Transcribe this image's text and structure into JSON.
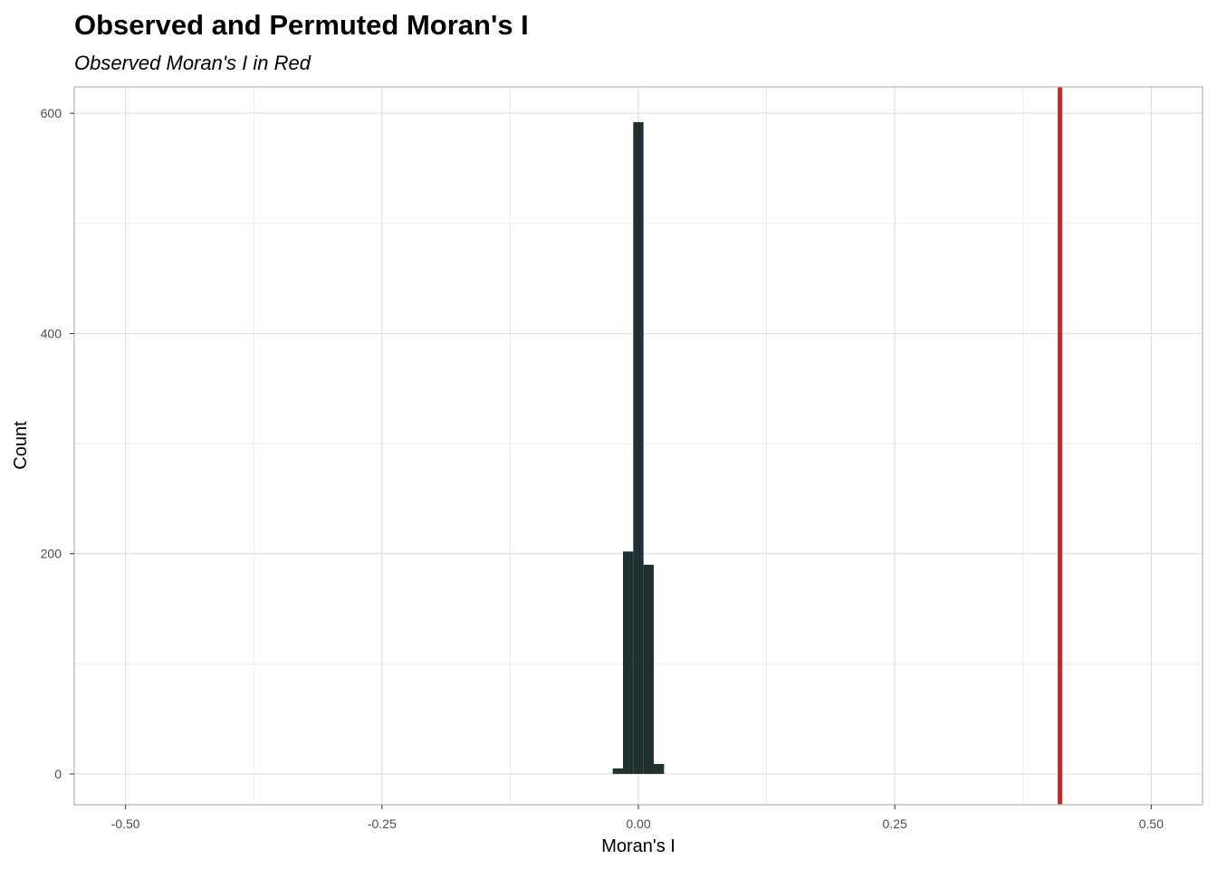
{
  "chart_data": {
    "type": "bar",
    "title": "Observed and Permuted Moran's I",
    "subtitle": "Observed Moran's I in Red",
    "xlabel": "Moran's I",
    "ylabel": "Count",
    "xlim": [
      -0.55,
      0.55
    ],
    "ylim": [
      -28,
      624
    ],
    "x_ticks": [
      -0.5,
      -0.25,
      0.0,
      0.25,
      0.5
    ],
    "x_tick_labels": [
      "-0.50",
      "-0.25",
      "0.00",
      "0.25",
      "0.50"
    ],
    "y_ticks": [
      0,
      200,
      400,
      600
    ],
    "y_tick_labels": [
      "0",
      "200",
      "400",
      "600"
    ],
    "grid": true,
    "bins": [
      {
        "x0": -0.025,
        "x1": -0.015,
        "count": 5
      },
      {
        "x0": -0.015,
        "x1": -0.005,
        "count": 202
      },
      {
        "x0": -0.005,
        "x1": 0.005,
        "count": 592
      },
      {
        "x0": 0.005,
        "x1": 0.015,
        "count": 190
      },
      {
        "x0": 0.015,
        "x1": 0.025,
        "count": 9
      }
    ],
    "observed_value": 0.411,
    "bar_color": "#213030",
    "observed_line_color": "#b2312b"
  }
}
